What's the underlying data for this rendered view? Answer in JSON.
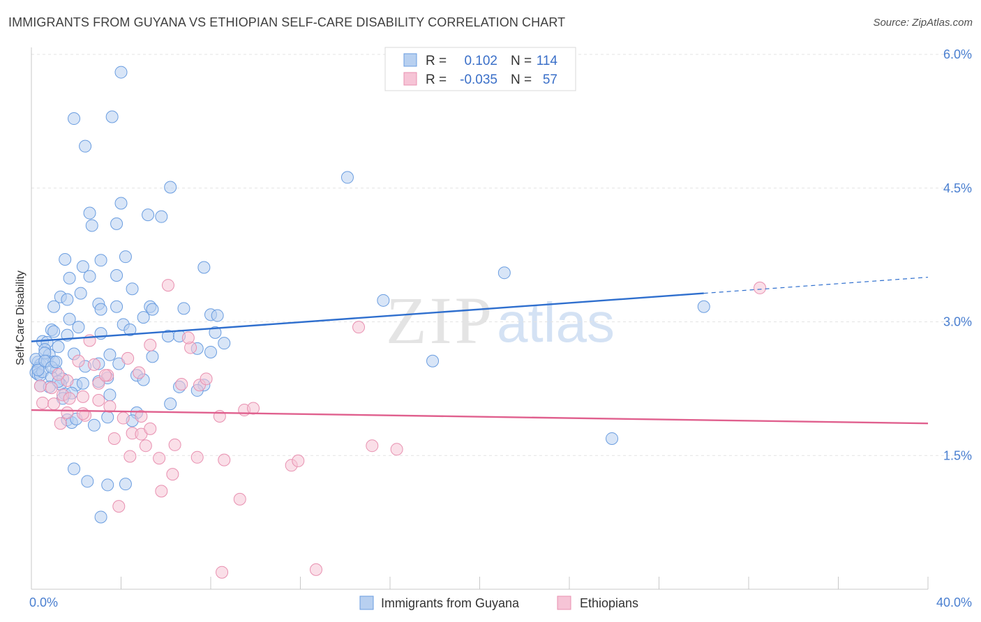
{
  "title": "IMMIGRANTS FROM GUYANA VS ETHIOPIAN SELF-CARE DISABILITY CORRELATION CHART",
  "source": "Source: ZipAtlas.com",
  "watermark": {
    "zip": "ZIP",
    "atlas": "atlas"
  },
  "colors": {
    "blue": "#6a9de0",
    "blue_fill": "#b8d0f0",
    "blue_line": "#2f6fce",
    "pink": "#e890b0",
    "pink_fill": "#f6c4d6",
    "pink_line": "#e0608e",
    "axis_text": "#4a7fd0"
  },
  "legend": {
    "rows": [
      {
        "r_label": "R =",
        "r_value": "0.102",
        "n_label": "N =",
        "n_value": "114",
        "series": "blue"
      },
      {
        "r_label": "R =",
        "r_value": "-0.035",
        "n_label": "N =",
        "n_value": "57",
        "series": "pink"
      }
    ]
  },
  "bottom_legend": [
    {
      "label": "Immigrants from Guyana",
      "series": "blue"
    },
    {
      "label": "Ethiopians",
      "series": "pink"
    }
  ],
  "chart_data": {
    "type": "scatter",
    "title": "IMMIGRANTS FROM GUYANA VS ETHIOPIAN SELF-CARE DISABILITY CORRELATION CHART",
    "xlabel": "",
    "ylabel": "Self-Care Disability",
    "xlim": [
      0,
      40
    ],
    "ylim": [
      0,
      6.0
    ],
    "x_tick_labels": {
      "min": "0.0%",
      "max": "40.0%"
    },
    "y_ticks": [
      {
        "value": 1.5,
        "label": "1.5%"
      },
      {
        "value": 3.0,
        "label": "3.0%"
      },
      {
        "value": 4.5,
        "label": "4.5%"
      },
      {
        "value": 6.0,
        "label": "6.0%"
      }
    ],
    "x_minor_ticks": [
      4,
      8,
      12,
      16,
      20,
      24,
      28,
      32,
      36,
      40
    ],
    "grid": true,
    "series": [
      {
        "name": "Immigrants from Guyana",
        "color": "blue",
        "trend": {
          "x": [
            0,
            30,
            40
          ],
          "y": [
            2.78,
            3.32,
            3.5
          ],
          "solid_until": 30
        },
        "points": [
          [
            4.0,
            5.8
          ],
          [
            1.9,
            5.28
          ],
          [
            3.6,
            5.3
          ],
          [
            2.4,
            4.97
          ],
          [
            6.2,
            4.51
          ],
          [
            4.0,
            4.33
          ],
          [
            2.6,
            4.22
          ],
          [
            5.2,
            4.2
          ],
          [
            5.8,
            4.18
          ],
          [
            2.7,
            4.08
          ],
          [
            3.8,
            4.1
          ],
          [
            14.1,
            4.62
          ],
          [
            21.1,
            3.55
          ],
          [
            30.0,
            3.17
          ],
          [
            15.7,
            3.24
          ],
          [
            1.5,
            3.7
          ],
          [
            3.1,
            3.69
          ],
          [
            4.2,
            3.73
          ],
          [
            7.7,
            3.61
          ],
          [
            2.3,
            3.62
          ],
          [
            1.7,
            3.49
          ],
          [
            2.6,
            3.51
          ],
          [
            3.8,
            3.52
          ],
          [
            1.3,
            3.28
          ],
          [
            1.6,
            3.25
          ],
          [
            2.2,
            3.32
          ],
          [
            4.5,
            3.37
          ],
          [
            1.0,
            3.17
          ],
          [
            3.0,
            3.2
          ],
          [
            3.1,
            3.14
          ],
          [
            3.8,
            3.17
          ],
          [
            5.3,
            3.17
          ],
          [
            5.4,
            3.14
          ],
          [
            6.8,
            3.15
          ],
          [
            8.0,
            3.08
          ],
          [
            8.3,
            3.07
          ],
          [
            1.7,
            3.03
          ],
          [
            4.1,
            2.97
          ],
          [
            5.0,
            3.05
          ],
          [
            0.9,
            2.91
          ],
          [
            1.0,
            2.89
          ],
          [
            2.1,
            2.94
          ],
          [
            3.1,
            2.87
          ],
          [
            4.4,
            2.91
          ],
          [
            6.1,
            2.84
          ],
          [
            6.6,
            2.84
          ],
          [
            8.2,
            2.88
          ],
          [
            0.5,
            2.78
          ],
          [
            0.7,
            2.77
          ],
          [
            1.2,
            2.72
          ],
          [
            1.6,
            2.85
          ],
          [
            8.6,
            2.76
          ],
          [
            0.6,
            2.69
          ],
          [
            0.8,
            2.63
          ],
          [
            1.9,
            2.64
          ],
          [
            3.5,
            2.63
          ],
          [
            5.4,
            2.61
          ],
          [
            7.4,
            2.7
          ],
          [
            8.0,
            2.66
          ],
          [
            17.9,
            2.56
          ],
          [
            0.3,
            2.55
          ],
          [
            0.4,
            2.52
          ],
          [
            0.3,
            2.48
          ],
          [
            0.7,
            2.56
          ],
          [
            1.0,
            2.55
          ],
          [
            1.1,
            2.45
          ],
          [
            2.4,
            2.5
          ],
          [
            3.0,
            2.53
          ],
          [
            3.9,
            2.53
          ],
          [
            0.2,
            2.43
          ],
          [
            0.3,
            2.41
          ],
          [
            0.4,
            2.4
          ],
          [
            0.5,
            2.44
          ],
          [
            0.9,
            2.38
          ],
          [
            1.4,
            2.36
          ],
          [
            3.4,
            2.37
          ],
          [
            4.7,
            2.4
          ],
          [
            5.0,
            2.35
          ],
          [
            0.4,
            2.28
          ],
          [
            0.8,
            2.27
          ],
          [
            1.3,
            2.3
          ],
          [
            2.0,
            2.29
          ],
          [
            2.3,
            2.31
          ],
          [
            3.0,
            2.33
          ],
          [
            6.6,
            2.27
          ],
          [
            7.7,
            2.29
          ],
          [
            1.5,
            2.19
          ],
          [
            3.5,
            2.18
          ],
          [
            7.4,
            2.23
          ],
          [
            1.4,
            2.14
          ],
          [
            6.2,
            2.08
          ],
          [
            4.7,
            1.98
          ],
          [
            1.6,
            1.9
          ],
          [
            1.8,
            1.87
          ],
          [
            2.0,
            1.91
          ],
          [
            2.8,
            1.84
          ],
          [
            3.4,
            1.93
          ],
          [
            4.5,
            1.89
          ],
          [
            25.9,
            1.69
          ],
          [
            1.9,
            1.35
          ],
          [
            2.5,
            1.21
          ],
          [
            3.4,
            1.17
          ],
          [
            4.2,
            1.18
          ],
          [
            3.1,
            0.81
          ],
          [
            0.2,
            2.58
          ],
          [
            0.3,
            2.46
          ],
          [
            0.6,
            2.65
          ],
          [
            0.6,
            2.56
          ],
          [
            0.9,
            2.49
          ],
          [
            1.1,
            2.55
          ],
          [
            1.2,
            2.33
          ],
          [
            1.8,
            2.2
          ]
        ]
      },
      {
        "name": "Ethiopians",
        "color": "pink",
        "trend": {
          "x": [
            0,
            40
          ],
          "y": [
            2.01,
            1.86
          ],
          "solid_until": 40
        },
        "points": [
          [
            6.1,
            3.41
          ],
          [
            32.5,
            3.38
          ],
          [
            14.6,
            2.94
          ],
          [
            2.6,
            2.79
          ],
          [
            5.3,
            2.74
          ],
          [
            7.1,
            2.71
          ],
          [
            7.0,
            2.82
          ],
          [
            2.1,
            2.56
          ],
          [
            2.8,
            2.52
          ],
          [
            3.4,
            2.4
          ],
          [
            4.3,
            2.59
          ],
          [
            4.8,
            2.43
          ],
          [
            6.7,
            2.3
          ],
          [
            7.5,
            2.29
          ],
          [
            7.8,
            2.36
          ],
          [
            0.4,
            2.28
          ],
          [
            0.9,
            2.26
          ],
          [
            1.6,
            2.34
          ],
          [
            3.0,
            2.31
          ],
          [
            3.3,
            2.4
          ],
          [
            1.4,
            2.18
          ],
          [
            1.7,
            2.14
          ],
          [
            2.3,
            2.16
          ],
          [
            3.0,
            2.12
          ],
          [
            0.5,
            2.09
          ],
          [
            1.0,
            2.08
          ],
          [
            3.5,
            2.05
          ],
          [
            9.5,
            2.01
          ],
          [
            9.9,
            2.03
          ],
          [
            1.6,
            1.98
          ],
          [
            2.4,
            1.95
          ],
          [
            4.1,
            1.92
          ],
          [
            4.9,
            1.94
          ],
          [
            8.4,
            1.94
          ],
          [
            1.3,
            1.86
          ],
          [
            4.5,
            1.75
          ],
          [
            4.9,
            1.74
          ],
          [
            5.3,
            1.8
          ],
          [
            3.7,
            1.69
          ],
          [
            5.1,
            1.61
          ],
          [
            6.4,
            1.62
          ],
          [
            15.2,
            1.61
          ],
          [
            16.3,
            1.57
          ],
          [
            4.4,
            1.49
          ],
          [
            5.7,
            1.47
          ],
          [
            7.4,
            1.48
          ],
          [
            8.6,
            1.45
          ],
          [
            11.6,
            1.39
          ],
          [
            11.9,
            1.44
          ],
          [
            6.3,
            1.29
          ],
          [
            5.8,
            1.1
          ],
          [
            9.3,
            1.01
          ],
          [
            3.9,
            0.93
          ],
          [
            8.5,
            0.19
          ],
          [
            12.7,
            0.22
          ],
          [
            2.3,
            1.97
          ],
          [
            1.2,
            2.41
          ]
        ]
      }
    ]
  }
}
